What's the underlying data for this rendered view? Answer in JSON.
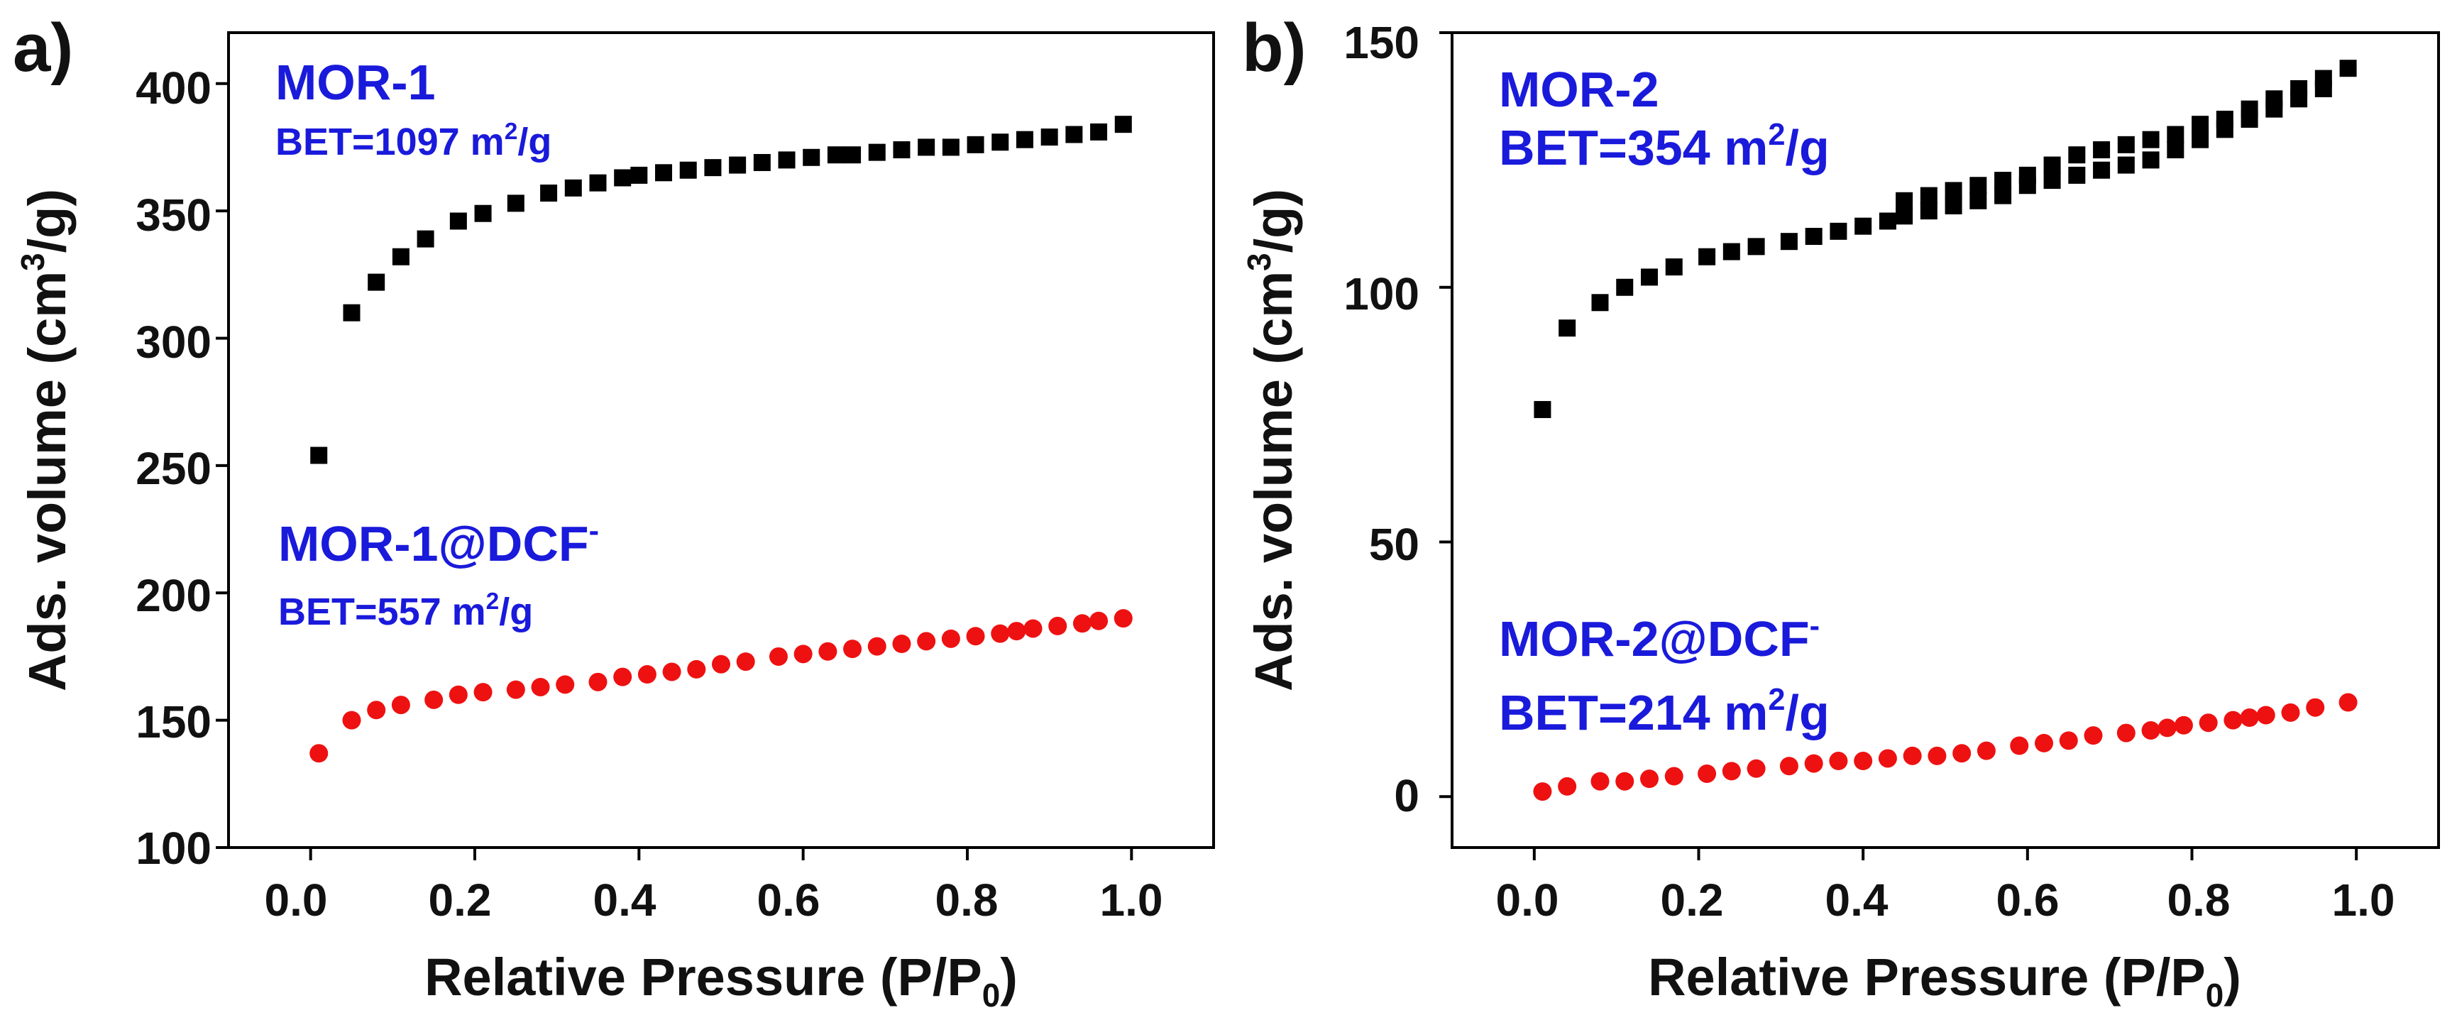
{
  "chart_data": [
    {
      "type": "scatter",
      "panel_label": "a)",
      "xlabel": "Relative Pressure (P/P",
      "xlabel_sub": "0",
      "xlabel_end": ")",
      "ylabel": "Ads. volume (cm",
      "ylabel_sup": "3",
      "ylabel_end": "/g)",
      "xlim": [
        -0.1,
        1.1
      ],
      "ylim": [
        100,
        420
      ],
      "xticks": [
        "0.0",
        "0.2",
        "0.4",
        "0.6",
        "0.8",
        "1.0"
      ],
      "yticks": [
        "100",
        "150",
        "200",
        "250",
        "300",
        "350",
        "400"
      ],
      "grid": false,
      "annotations": [
        {
          "title": "MOR-1",
          "title_sup": "",
          "bet": "BET=1097 m",
          "bet_sup": "2",
          "bet_end": "/g"
        },
        {
          "title": "MOR-1@DCF",
          "title_sup": "-",
          "bet": "BET=557 m",
          "bet_sup": "2",
          "bet_end": "/g"
        }
      ],
      "series": [
        {
          "name": "MOR-1",
          "marker": "square",
          "color": "#000000",
          "x": [
            0.01,
            0.05,
            0.08,
            0.11,
            0.14,
            0.18,
            0.21,
            0.25,
            0.29,
            0.32,
            0.35,
            0.38,
            0.4,
            0.43,
            0.46,
            0.49,
            0.52,
            0.55,
            0.58,
            0.61,
            0.64,
            0.66,
            0.69,
            0.72,
            0.75,
            0.78,
            0.81,
            0.84,
            0.87,
            0.9,
            0.93,
            0.96,
            0.99
          ],
          "y": [
            254,
            310,
            322,
            332,
            339,
            346,
            349,
            353,
            357,
            359,
            361,
            363,
            364,
            365,
            366,
            367,
            368,
            369,
            370,
            371,
            372,
            372,
            373,
            374,
            375,
            375,
            376,
            377,
            378,
            379,
            380,
            381,
            384
          ]
        },
        {
          "name": "MOR-1@DCF-",
          "marker": "circle",
          "color": "#ee1111",
          "x": [
            0.01,
            0.05,
            0.08,
            0.11,
            0.15,
            0.18,
            0.21,
            0.25,
            0.28,
            0.31,
            0.35,
            0.38,
            0.41,
            0.44,
            0.47,
            0.5,
            0.53,
            0.57,
            0.6,
            0.63,
            0.66,
            0.69,
            0.72,
            0.75,
            0.78,
            0.81,
            0.84,
            0.86,
            0.88,
            0.91,
            0.94,
            0.96,
            0.99
          ],
          "y": [
            137,
            150,
            154,
            156,
            158,
            160,
            161,
            162,
            163,
            164,
            165,
            167,
            168,
            169,
            170,
            172,
            173,
            175,
            176,
            177,
            178,
            179,
            180,
            181,
            182,
            183,
            184,
            185,
            186,
            187,
            188,
            189,
            190
          ]
        }
      ]
    },
    {
      "type": "scatter",
      "panel_label": "b)",
      "xlabel": "Relative Pressure (P/P",
      "xlabel_sub": "0",
      "xlabel_end": ")",
      "ylabel": "Ads. volume (cm",
      "ylabel_sup": "3",
      "ylabel_end": "/g)",
      "xlim": [
        -0.1,
        1.1
      ],
      "ylim": [
        -10,
        150
      ],
      "xticks": [
        "0.0",
        "0.2",
        "0.4",
        "0.6",
        "0.8",
        "1.0"
      ],
      "yticks": [
        "0",
        "50",
        "100",
        "150"
      ],
      "grid": false,
      "annotations": [
        {
          "title": "MOR-2",
          "title_sup": "",
          "bet": "BET=354 m",
          "bet_sup": "2",
          "bet_end": "/g"
        },
        {
          "title": "MOR-2@DCF",
          "title_sup": "-",
          "bet": "BET=214 m",
          "bet_sup": "2",
          "bet_end": "/g"
        }
      ],
      "series": [
        {
          "name": "MOR-2",
          "marker": "square",
          "color": "#000000",
          "x": [
            0.01,
            0.04,
            0.08,
            0.11,
            0.14,
            0.17,
            0.21,
            0.24,
            0.27,
            0.31,
            0.34,
            0.37,
            0.4,
            0.43,
            0.45,
            0.48,
            0.51,
            0.54,
            0.57,
            0.6,
            0.63,
            0.66,
            0.69,
            0.72,
            0.75,
            0.78,
            0.81,
            0.84,
            0.87,
            0.9,
            0.93,
            0.96,
            0.99,
            0.96,
            0.93,
            0.9,
            0.87,
            0.84,
            0.81,
            0.78,
            0.75,
            0.72,
            0.69,
            0.66,
            0.63,
            0.6,
            0.57,
            0.54,
            0.51,
            0.48,
            0.45
          ],
          "y": [
            76,
            92,
            97,
            100,
            102,
            104,
            106,
            107,
            108,
            109,
            110,
            111,
            112,
            113,
            114,
            115,
            116,
            117,
            118,
            120,
            121,
            122,
            123,
            124,
            125,
            127,
            129,
            131,
            133,
            135,
            137,
            139,
            143,
            141,
            139,
            137,
            135,
            133,
            132,
            130,
            129,
            128,
            127,
            126,
            124,
            122,
            121,
            120,
            119,
            118,
            117
          ]
        },
        {
          "name": "MOR-2@DCF-",
          "marker": "circle",
          "color": "#ee1111",
          "x": [
            0.01,
            0.04,
            0.08,
            0.11,
            0.14,
            0.17,
            0.21,
            0.24,
            0.27,
            0.31,
            0.34,
            0.37,
            0.4,
            0.43,
            0.46,
            0.49,
            0.52,
            0.55,
            0.59,
            0.62,
            0.65,
            0.68,
            0.72,
            0.75,
            0.77,
            0.79,
            0.82,
            0.85,
            0.87,
            0.89,
            0.92,
            0.95,
            0.99
          ],
          "y": [
            1,
            2,
            3,
            3,
            3.5,
            4,
            4.5,
            5,
            5.5,
            6,
            6.5,
            7,
            7,
            7.5,
            8,
            8,
            8.5,
            9,
            10,
            10.5,
            11,
            12,
            12.5,
            13,
            13.5,
            14,
            14.5,
            15,
            15.5,
            16,
            16.5,
            17.5,
            18.5
          ]
        }
      ]
    }
  ]
}
